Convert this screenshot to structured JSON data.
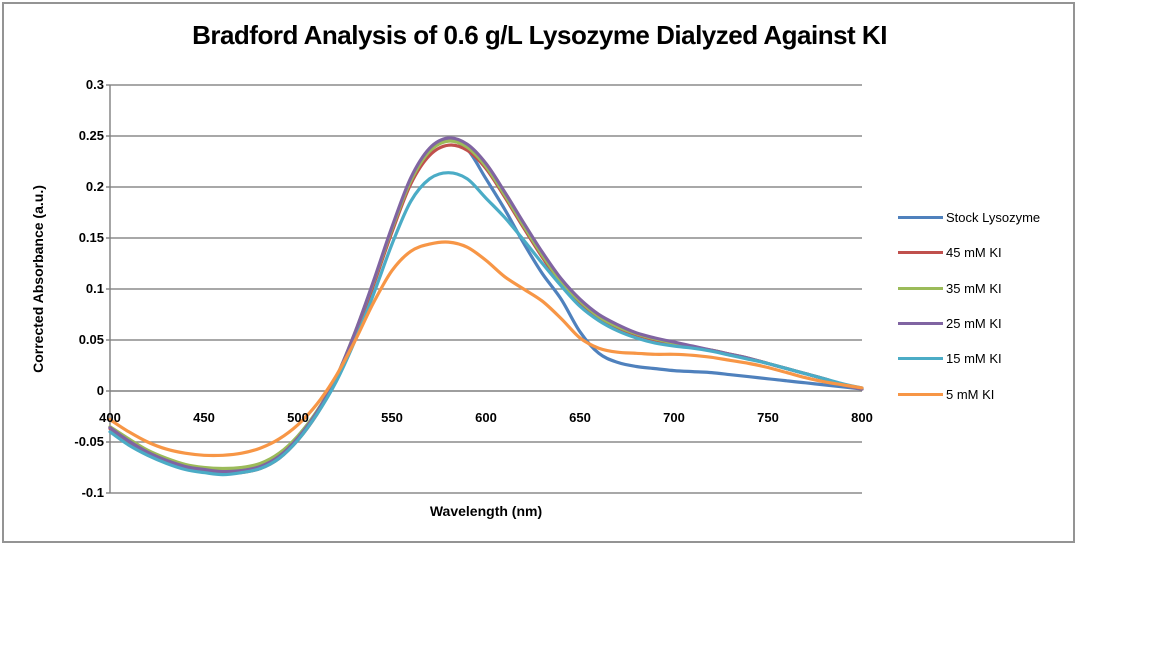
{
  "chart": {
    "title": "Bradford Analysis of 0.6 g/L Lysozyme Dialyzed Against KI",
    "x_axis": {
      "title": "Wavelength (nm)",
      "tick_labels": [
        "400",
        "450",
        "500",
        "550",
        "600",
        "650",
        "700",
        "750",
        "800"
      ]
    },
    "y_axis": {
      "title": "Corrected Absorbance (a.u.)",
      "tick_labels": [
        "0.3",
        "0.25",
        "0.2",
        "0.15",
        "0.1",
        "0.05",
        "0",
        "-0.05",
        "-0.1"
      ]
    },
    "colors": {
      "gridline": "#8B8B8B",
      "axis": "#7F7F7F",
      "border": "#949494"
    }
  },
  "chart_data": {
    "type": "line",
    "title": "Bradford Analysis of 0.6 g/L Lysozyme Dialyzed Against KI",
    "xlabel": "Wavelength (nm)",
    "ylabel": "Corrected Absorbance (a.u.)",
    "xlim": [
      400,
      800
    ],
    "ylim": [
      -0.1,
      0.3
    ],
    "x_tick_step": 50,
    "y_tick_step": 0.05,
    "grid": true,
    "legend_position": "right",
    "x": [
      400,
      410,
      420,
      430,
      440,
      450,
      460,
      470,
      480,
      490,
      500,
      510,
      520,
      530,
      540,
      550,
      560,
      570,
      580,
      590,
      600,
      610,
      620,
      630,
      640,
      650,
      660,
      670,
      680,
      690,
      700,
      710,
      720,
      730,
      740,
      750,
      760,
      770,
      780,
      790,
      800
    ],
    "series": [
      {
        "name": "Stock Lysozyme",
        "color": "#4F81BD",
        "values": [
          -0.036,
          -0.049,
          -0.06,
          -0.068,
          -0.074,
          -0.077,
          -0.078,
          -0.077,
          -0.072,
          -0.062,
          -0.044,
          -0.02,
          0.012,
          0.055,
          0.105,
          0.158,
          0.205,
          0.235,
          0.246,
          0.237,
          0.208,
          0.178,
          0.145,
          0.115,
          0.09,
          0.058,
          0.037,
          0.028,
          0.024,
          0.022,
          0.02,
          0.019,
          0.018,
          0.016,
          0.014,
          0.012,
          0.01,
          0.008,
          0.006,
          0.004,
          0.002
        ]
      },
      {
        "name": "45 mM KI",
        "color": "#C0504D",
        "values": [
          -0.037,
          -0.05,
          -0.061,
          -0.07,
          -0.076,
          -0.079,
          -0.081,
          -0.08,
          -0.076,
          -0.066,
          -0.048,
          -0.023,
          0.01,
          0.053,
          0.103,
          0.156,
          0.203,
          0.231,
          0.241,
          0.236,
          0.218,
          0.19,
          0.16,
          0.131,
          0.105,
          0.086,
          0.072,
          0.062,
          0.055,
          0.05,
          0.046,
          0.043,
          0.04,
          0.036,
          0.032,
          0.027,
          0.022,
          0.017,
          0.012,
          0.006,
          0.002
        ]
      },
      {
        "name": "35 mM KI",
        "color": "#9BBB59",
        "values": [
          -0.035,
          -0.047,
          -0.058,
          -0.066,
          -0.072,
          -0.075,
          -0.076,
          -0.075,
          -0.071,
          -0.061,
          -0.044,
          -0.02,
          0.012,
          0.056,
          0.106,
          0.159,
          0.206,
          0.235,
          0.245,
          0.239,
          0.22,
          0.192,
          0.162,
          0.133,
          0.107,
          0.088,
          0.073,
          0.063,
          0.056,
          0.051,
          0.047,
          0.043,
          0.04,
          0.036,
          0.032,
          0.027,
          0.022,
          0.017,
          0.012,
          0.006,
          0.002
        ]
      },
      {
        "name": "25 mM KI",
        "color": "#8064A2",
        "values": [
          -0.036,
          -0.049,
          -0.06,
          -0.068,
          -0.074,
          -0.077,
          -0.079,
          -0.078,
          -0.074,
          -0.064,
          -0.046,
          -0.021,
          0.012,
          0.056,
          0.107,
          0.161,
          0.209,
          0.238,
          0.248,
          0.242,
          0.223,
          0.195,
          0.165,
          0.136,
          0.11,
          0.09,
          0.075,
          0.065,
          0.057,
          0.052,
          0.048,
          0.044,
          0.04,
          0.036,
          0.032,
          0.027,
          0.022,
          0.017,
          0.012,
          0.006,
          0.002
        ]
      },
      {
        "name": "15 mM KI",
        "color": "#4BACC6",
        "values": [
          -0.04,
          -0.053,
          -0.063,
          -0.071,
          -0.077,
          -0.08,
          -0.082,
          -0.08,
          -0.076,
          -0.066,
          -0.048,
          -0.023,
          0.008,
          0.048,
          0.094,
          0.144,
          0.186,
          0.208,
          0.214,
          0.208,
          0.189,
          0.17,
          0.148,
          0.125,
          0.103,
          0.083,
          0.069,
          0.059,
          0.052,
          0.047,
          0.044,
          0.042,
          0.039,
          0.035,
          0.031,
          0.027,
          0.022,
          0.017,
          0.012,
          0.007,
          0.003
        ]
      },
      {
        "name": "5 mM KI",
        "color": "#F79646",
        "values": [
          -0.028,
          -0.04,
          -0.05,
          -0.057,
          -0.061,
          -0.063,
          -0.063,
          -0.061,
          -0.056,
          -0.047,
          -0.033,
          -0.013,
          0.014,
          0.048,
          0.086,
          0.118,
          0.137,
          0.144,
          0.146,
          0.141,
          0.128,
          0.112,
          0.1,
          0.088,
          0.071,
          0.052,
          0.042,
          0.038,
          0.037,
          0.036,
          0.036,
          0.035,
          0.033,
          0.03,
          0.027,
          0.023,
          0.018,
          0.013,
          0.009,
          0.006,
          0.003
        ]
      }
    ]
  }
}
